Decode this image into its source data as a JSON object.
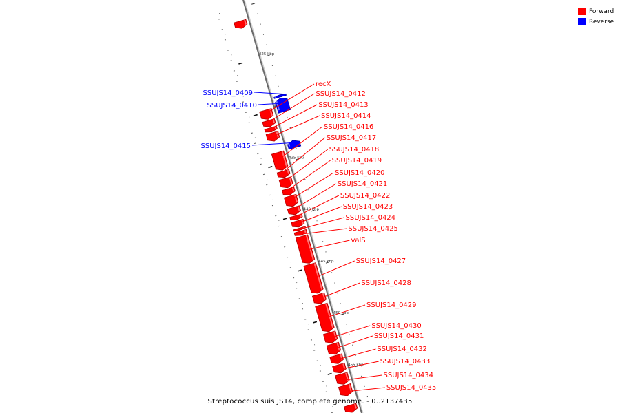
{
  "legend": {
    "forward_label": "Forward",
    "forward_color": "#ff0000",
    "reverse_label": "Reverse",
    "reverse_color": "#0000ff"
  },
  "footer": {
    "genome_title": "Streptococcus suis JS14, complete genome. - 0..2137435"
  },
  "axis": {
    "ticks": [
      {
        "kbp": 425,
        "label": "425 kbp"
      },
      {
        "kbp": 430,
        "label": "430 kbp"
      },
      {
        "kbp": 435,
        "label": "435 kbp"
      },
      {
        "kbp": 440,
        "label": "440 kbp"
      },
      {
        "kbp": 445,
        "label": "445 kbp"
      },
      {
        "kbp": 450,
        "label": "450 kbp"
      },
      {
        "kbp": 455,
        "label": "455 kbp"
      }
    ]
  },
  "genes": [
    {
      "name": "",
      "strand": "forward",
      "start": 421.2,
      "end": 421.9
    },
    {
      "name": "SSUJS14_0409",
      "strand": "reverse",
      "start": 428.8,
      "end": 429.0
    },
    {
      "name": "SSUJS14_0410",
      "strand": "reverse",
      "start": 429.1,
      "end": 430.4
    },
    {
      "name": "recX",
      "strand": "forward",
      "start": 429.8,
      "end": 430.7
    },
    {
      "name": "SSUJS14_0412",
      "strand": "forward",
      "start": 430.8,
      "end": 431.4
    },
    {
      "name": "SSUJS14_0413",
      "strand": "forward",
      "start": 431.5,
      "end": 431.9
    },
    {
      "name": "SSUJS14_0414",
      "strand": "forward",
      "start": 432.0,
      "end": 432.8
    },
    {
      "name": "SSUJS14_0415",
      "strand": "reverse",
      "start": 433.2,
      "end": 433.9
    },
    {
      "name": "SSUJS14_0416",
      "strand": "forward",
      "start": 433.9,
      "end": 435.6
    },
    {
      "name": "SSUJS14_0417",
      "strand": "forward",
      "start": 435.7,
      "end": 436.3
    },
    {
      "name": "SSUJS14_0418",
      "strand": "forward",
      "start": 436.4,
      "end": 437.3
    },
    {
      "name": "SSUJS14_0419",
      "strand": "forward",
      "start": 437.4,
      "end": 438.0
    },
    {
      "name": "SSUJS14_0420",
      "strand": "forward",
      "start": 438.1,
      "end": 439.1
    },
    {
      "name": "SSUJS14_0421",
      "strand": "forward",
      "start": 439.2,
      "end": 439.9
    },
    {
      "name": "SSUJS14_0422",
      "strand": "forward",
      "start": 440.0,
      "end": 440.4
    },
    {
      "name": "SSUJS14_0423",
      "strand": "forward",
      "start": 440.5,
      "end": 441.1
    },
    {
      "name": "SSUJS14_0424",
      "strand": "forward",
      "start": 441.2,
      "end": 441.4
    },
    {
      "name": "SSUJS14_0425",
      "strand": "forward",
      "start": 441.5,
      "end": 441.9
    },
    {
      "name": "valS",
      "strand": "forward",
      "start": 442.0,
      "end": 444.6
    },
    {
      "name": "SSUJS14_0427",
      "strand": "forward",
      "start": 444.7,
      "end": 447.5
    },
    {
      "name": "SSUJS14_0428",
      "strand": "forward",
      "start": 447.6,
      "end": 448.5
    },
    {
      "name": "SSUJS14_0429",
      "strand": "forward",
      "start": 448.6,
      "end": 451.2
    },
    {
      "name": "SSUJS14_0430",
      "strand": "forward",
      "start": 451.3,
      "end": 452.3
    },
    {
      "name": "SSUJS14_0431",
      "strand": "forward",
      "start": 452.4,
      "end": 453.4
    },
    {
      "name": "SSUJS14_0432",
      "strand": "forward",
      "start": 453.5,
      "end": 454.3
    },
    {
      "name": "SSUJS14_0433",
      "strand": "forward",
      "start": 454.4,
      "end": 455.2
    },
    {
      "name": "SSUJS14_0434",
      "strand": "forward",
      "start": 455.3,
      "end": 456.3
    },
    {
      "name": "SSUJS14_0435",
      "strand": "forward",
      "start": 456.4,
      "end": 457.4
    },
    {
      "name": "",
      "strand": "forward",
      "start": 458.3,
      "end": 459.0
    }
  ]
}
